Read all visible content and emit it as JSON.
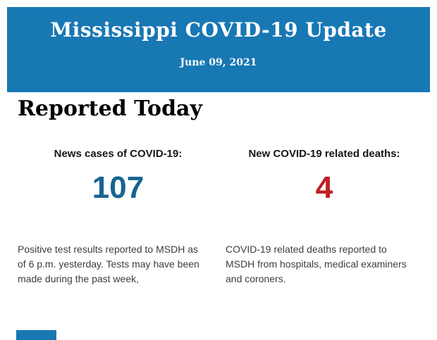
{
  "header": {
    "title": "Mississippi COVID-19 Update",
    "date": "June 09, 2021",
    "background_color": "#1878b4",
    "text_color": "#ffffff"
  },
  "section": {
    "heading": "Reported Today"
  },
  "stats": [
    {
      "label": "News cases of COVID-19:",
      "value": "107",
      "value_color": "#176491",
      "description": "Positive test results reported to MSDH as\nof 6 p.m. yesterday. Tests may have been\nmade during the past week,"
    },
    {
      "label": "New COVID-19 related deaths:",
      "value": "4",
      "value_color": "#c01e23",
      "description": "COVID-19 related deaths reported to\nMSDH from hospitals, medical examiners\nand coroners."
    }
  ],
  "footer": {
    "fragment_color": "#1878b4"
  }
}
